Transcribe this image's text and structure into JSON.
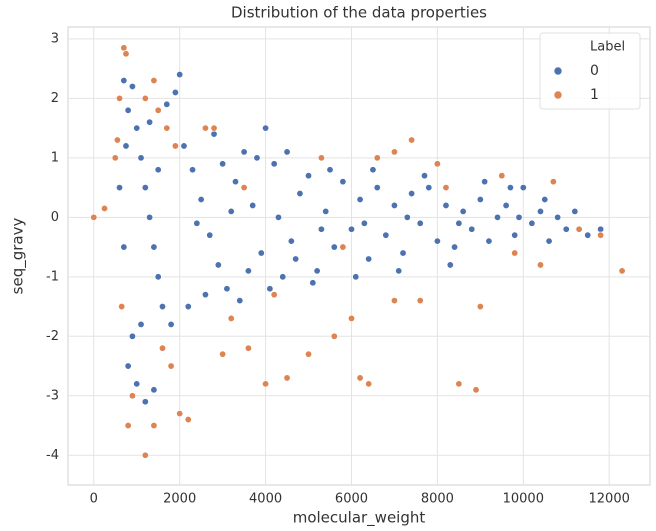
{
  "chart_data": {
    "type": "scatter",
    "title": "Distribution of the data properties",
    "x_label": "molecular_weight",
    "y_label": "seq_gravy",
    "legend_title": "Label",
    "legend_position": "upper right",
    "grid": true,
    "xlim": [
      -600,
      12950
    ],
    "ylim": [
      -4.5,
      3.2
    ],
    "xticks": [
      0,
      2000,
      4000,
      6000,
      8000,
      10000,
      12000
    ],
    "yticks": [
      -4,
      -3,
      -2,
      -1,
      0,
      1,
      2,
      3
    ],
    "series": [
      {
        "name": "0",
        "color": "#4c72b0",
        "x": [
          700,
          800,
          900,
          1000,
          1100,
          1200,
          1300,
          1400,
          1500,
          1600,
          800,
          900,
          1000,
          1200,
          1400,
          1700,
          1900,
          2000,
          2100,
          2300,
          2500,
          2700,
          2900,
          3100,
          3300,
          3500,
          3700,
          3900,
          4000,
          4200,
          4400,
          4600,
          4800,
          5000,
          5200,
          5400,
          5600,
          5800,
          6000,
          6200,
          6400,
          6600,
          6800,
          7000,
          7200,
          7400,
          7600,
          7800,
          8000,
          8200,
          8400,
          8600,
          8800,
          9000,
          9200,
          9400,
          9600,
          9800,
          10000,
          10200,
          10400,
          10600,
          10800,
          11000,
          11200,
          11500,
          11800,
          600,
          700,
          750,
          1800,
          2200,
          2600,
          3000,
          3400,
          3800,
          4100,
          4500,
          5100,
          5500,
          6100,
          6500,
          7100,
          7700,
          8300,
          9100,
          9700,
          10500,
          1500,
          2400,
          3200,
          4300,
          5300,
          6300,
          7300,
          8500,
          9900,
          1100,
          1300,
          2800,
          3600,
          4700
        ],
        "values": [
          2.3,
          1.8,
          2.2,
          1.5,
          1.0,
          0.5,
          0.0,
          -0.5,
          -1.0,
          -1.5,
          -2.5,
          -2.0,
          -2.8,
          -3.1,
          -2.9,
          1.9,
          2.1,
          2.4,
          1.2,
          0.8,
          0.3,
          -0.3,
          -0.8,
          -1.2,
          0.6,
          1.1,
          0.2,
          -0.6,
          1.5,
          0.9,
          -1.0,
          -0.4,
          0.4,
          0.7,
          -0.9,
          0.1,
          -0.5,
          0.6,
          -0.2,
          0.3,
          -0.7,
          0.5,
          -0.3,
          0.2,
          -0.6,
          0.4,
          -0.1,
          0.5,
          -0.4,
          0.2,
          -0.5,
          0.1,
          -0.2,
          0.3,
          -0.4,
          0.0,
          0.2,
          -0.3,
          0.5,
          -0.1,
          0.1,
          -0.4,
          0.0,
          -0.2,
          0.1,
          -0.3,
          -0.2,
          0.5,
          -0.5,
          1.2,
          -1.8,
          -1.5,
          -1.3,
          0.9,
          -1.4,
          1.0,
          -1.2,
          1.1,
          -1.1,
          0.8,
          -1.0,
          0.8,
          -0.9,
          0.7,
          -0.8,
          0.6,
          0.5,
          0.3,
          0.8,
          -0.1,
          0.1,
          0.0,
          -0.2,
          -0.1,
          0.0,
          -0.1,
          0.0,
          -1.8,
          1.6,
          1.4,
          -0.9,
          -0.7
        ]
      },
      {
        "name": "1",
        "color": "#dd8452",
        "x": [
          0,
          250,
          600,
          700,
          750,
          550,
          500,
          650,
          800,
          900,
          1200,
          1400,
          1600,
          1800,
          2000,
          2200,
          1500,
          1700,
          1900,
          2600,
          2800,
          1200,
          1400,
          3000,
          3200,
          3600,
          4000,
          4500,
          5000,
          5300,
          5600,
          6000,
          6200,
          6400,
          6600,
          7000,
          7400,
          7000,
          7600,
          8000,
          8500,
          8900,
          9000,
          9500,
          10400,
          10700,
          11300,
          11800,
          12300,
          3500,
          4200,
          5800,
          8200,
          9800
        ],
        "values": [
          0.0,
          0.15,
          2.0,
          2.85,
          2.75,
          1.3,
          1.0,
          -1.5,
          -3.5,
          -3.0,
          -4.0,
          -3.5,
          -2.2,
          -2.5,
          -3.3,
          -3.4,
          1.8,
          1.5,
          1.2,
          1.5,
          1.5,
          2.0,
          2.3,
          -2.3,
          -1.7,
          -2.2,
          -2.8,
          -2.7,
          -2.3,
          1.0,
          -2.0,
          -1.7,
          -2.7,
          -2.8,
          1.0,
          1.1,
          1.3,
          -1.4,
          -1.4,
          0.9,
          -2.8,
          -2.9,
          -1.5,
          0.7,
          -0.8,
          0.6,
          -0.2,
          -0.3,
          -0.9,
          0.5,
          -1.3,
          -0.5,
          0.5,
          -0.6
        ]
      }
    ]
  }
}
